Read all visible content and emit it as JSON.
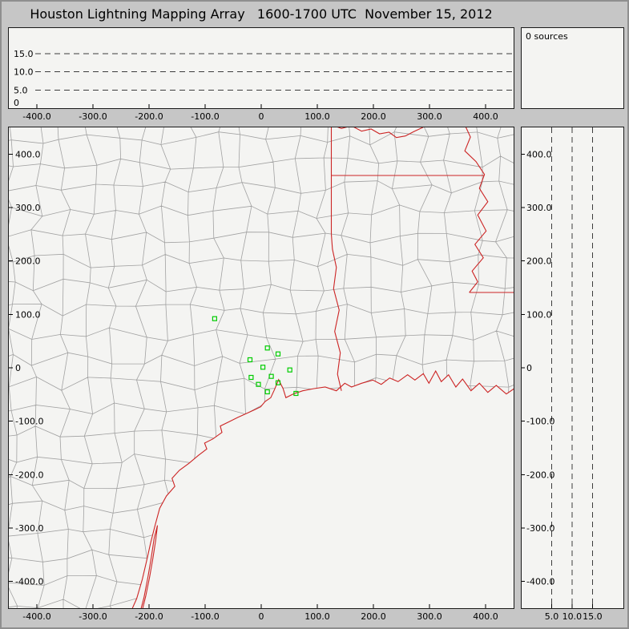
{
  "window": {
    "title": "Houston Lightning Mapping Array   1600-1700 UTC  November 15, 2012"
  },
  "colors": {
    "window_bg": "#c6c6c6",
    "panel_bg": "#f4f4f2",
    "frame": "#1a1a1a",
    "gridline": "#3c3c3c",
    "county": "#a2a2a2",
    "state": "#cc2424",
    "marker": "#00cc00"
  },
  "chart_data": [
    {
      "id": "alt_vs_ew",
      "type": "scatter",
      "description_axes": "altitude (km) vs east-west distance (km)",
      "x_range": [
        -450,
        450
      ],
      "y_range": [
        0,
        22
      ],
      "x_ticks": {
        "values": [
          -400,
          -300,
          -200,
          -100,
          0,
          100,
          200,
          300,
          400
        ],
        "labels": [
          "-400.0",
          "-300.0",
          "-200.0",
          "-100.0",
          "0",
          "100.0",
          "200.0",
          "300.0",
          "400.0"
        ]
      },
      "y_ticks": {
        "values": [
          15,
          10,
          5,
          0
        ],
        "labels": [
          "15.0",
          "10.0",
          "5.0",
          "0"
        ]
      },
      "y_gridlines": [
        5,
        10,
        15
      ],
      "points": []
    },
    {
      "id": "source_count",
      "type": "text",
      "label": "0 sources",
      "points": []
    },
    {
      "id": "plan_view",
      "type": "scatter",
      "description_axes": "north-south distance (km) vs east-west distance (km)",
      "x_range": [
        -450,
        450
      ],
      "y_range": [
        -450,
        450
      ],
      "x_ticks": {
        "values": [
          -400,
          -300,
          -200,
          -100,
          0,
          100,
          200,
          300,
          400
        ],
        "labels": [
          "-400.0",
          "-300.0",
          "-200.0",
          "-100.0",
          "0",
          "100.0",
          "200.0",
          "300.0",
          "400.0"
        ]
      },
      "y_ticks": {
        "values": [
          400,
          300,
          200,
          100,
          0,
          -100,
          -200,
          -300,
          -400
        ],
        "labels": [
          "400.0",
          "300.0",
          "200.0",
          "100.0",
          "0",
          "-100.0",
          "-200.0",
          "-300.0",
          "-400.0"
        ]
      },
      "stations": [
        [
          -83,
          92
        ],
        [
          11,
          37
        ],
        [
          30,
          26
        ],
        [
          -20,
          15
        ],
        [
          3,
          1
        ],
        [
          -18,
          -18
        ],
        [
          18,
          -16
        ],
        [
          -5,
          -31
        ],
        [
          30,
          -28
        ],
        [
          11,
          -45
        ],
        [
          51,
          -4
        ],
        [
          62,
          -48
        ]
      ],
      "points": [],
      "map": {
        "coastline": [
          [
            -238,
            -470
          ],
          [
            -222,
            -432
          ],
          [
            -212,
            -396
          ],
          [
            -204,
            -360
          ],
          [
            -197,
            -327
          ],
          [
            -189,
            -294
          ],
          [
            -181,
            -263
          ],
          [
            -169,
            -240
          ],
          [
            -154,
            -222
          ],
          [
            -159,
            -207
          ],
          [
            -146,
            -192
          ],
          [
            -129,
            -179
          ],
          [
            -112,
            -164
          ],
          [
            -97,
            -152
          ],
          [
            -101,
            -141
          ],
          [
            -86,
            -133
          ],
          [
            -70,
            -121
          ],
          [
            -73,
            -109
          ],
          [
            -57,
            -101
          ],
          [
            -42,
            -93
          ],
          [
            -27,
            -86
          ],
          [
            -13,
            -79
          ],
          [
            -1,
            -73
          ],
          [
            7,
            -63
          ],
          [
            17,
            -56
          ],
          [
            24,
            -40
          ],
          [
            31,
            -22
          ],
          [
            39,
            -39
          ],
          [
            44,
            -56
          ],
          [
            57,
            -49
          ],
          [
            74,
            -43
          ],
          [
            94,
            -39
          ],
          [
            114,
            -36
          ],
          [
            134,
            -43
          ],
          [
            149,
            -29
          ],
          [
            161,
            -36
          ],
          [
            179,
            -29
          ],
          [
            199,
            -23
          ],
          [
            214,
            -31
          ],
          [
            229,
            -19
          ],
          [
            244,
            -26
          ],
          [
            261,
            -13
          ],
          [
            274,
            -23
          ],
          [
            289,
            -11
          ],
          [
            299,
            -29
          ],
          [
            311,
            -6
          ],
          [
            321,
            -26
          ],
          [
            334,
            -13
          ],
          [
            347,
            -36
          ],
          [
            359,
            -21
          ],
          [
            374,
            -43
          ],
          [
            389,
            -29
          ],
          [
            404,
            -46
          ],
          [
            419,
            -33
          ],
          [
            437,
            -49
          ],
          [
            451,
            -39
          ],
          [
            465,
            -43
          ]
        ],
        "barrier_island": [
          [
            -215,
            -466
          ],
          [
            -206,
            -428
          ],
          [
            -199,
            -392
          ],
          [
            -193,
            -356
          ],
          [
            -188,
            -322
          ],
          [
            -185,
            -295
          ],
          [
            -191,
            -320
          ],
          [
            -196,
            -355
          ],
          [
            -202,
            -392
          ],
          [
            -209,
            -430
          ],
          [
            -218,
            -466
          ]
        ],
        "state_borders": [
          [
            [
              143,
              -43
            ],
            [
              136,
              -12
            ],
            [
              141,
              28
            ],
            [
              131,
              68
            ],
            [
              139,
              108
            ],
            [
              129,
              148
            ],
            [
              134,
              188
            ],
            [
              127,
              222
            ],
            [
              125,
              250
            ]
          ],
          [
            [
              125,
              250
            ],
            [
              125,
              455
            ]
          ],
          [
            [
              125,
              455
            ],
            [
              143,
              448
            ],
            [
              161,
              453
            ],
            [
              179,
              443
            ],
            [
              196,
              447
            ],
            [
              211,
              438
            ],
            [
              228,
              441
            ],
            [
              241,
              431
            ],
            [
              257,
              434
            ],
            [
              272,
              442
            ],
            [
              288,
              450
            ],
            [
              300,
              462
            ]
          ],
          [
            [
              125,
              360
            ],
            [
              398,
              360
            ]
          ],
          [
            [
              358,
              466
            ],
            [
              373,
              432
            ],
            [
              363,
              406
            ],
            [
              383,
              386
            ],
            [
              398,
              362
            ],
            [
              389,
              336
            ],
            [
              404,
              311
            ],
            [
              386,
              286
            ],
            [
              401,
              256
            ],
            [
              381,
              231
            ],
            [
              396,
              206
            ],
            [
              376,
              181
            ],
            [
              386,
              161
            ],
            [
              371,
              141
            ]
          ],
          [
            [
              371,
              141
            ],
            [
              466,
              141
            ]
          ]
        ],
        "county_grid": {
          "cell_km": 46,
          "jitter_km": 13,
          "seed": 11
        }
      }
    },
    {
      "id": "alt_vs_ns",
      "type": "scatter",
      "description_axes": "north-south distance (km) vs altitude (km)",
      "x_range": [
        0,
        22
      ],
      "y_range": [
        -450,
        450
      ],
      "x_ticks": {
        "values": [
          5,
          10,
          15
        ],
        "labels": [
          "5.0",
          "10.0",
          "15.0"
        ]
      },
      "y_ticks": {
        "values": [
          400,
          300,
          200,
          100,
          0,
          -100,
          -200,
          -300,
          -400
        ],
        "labels": [
          "400.0",
          "300.0",
          "200.0",
          "100.0",
          "0",
          "-100.0",
          "-200.0",
          "-300.0",
          "-400.0"
        ]
      },
      "x_gridlines": [
        5,
        10,
        15
      ],
      "points": []
    }
  ]
}
